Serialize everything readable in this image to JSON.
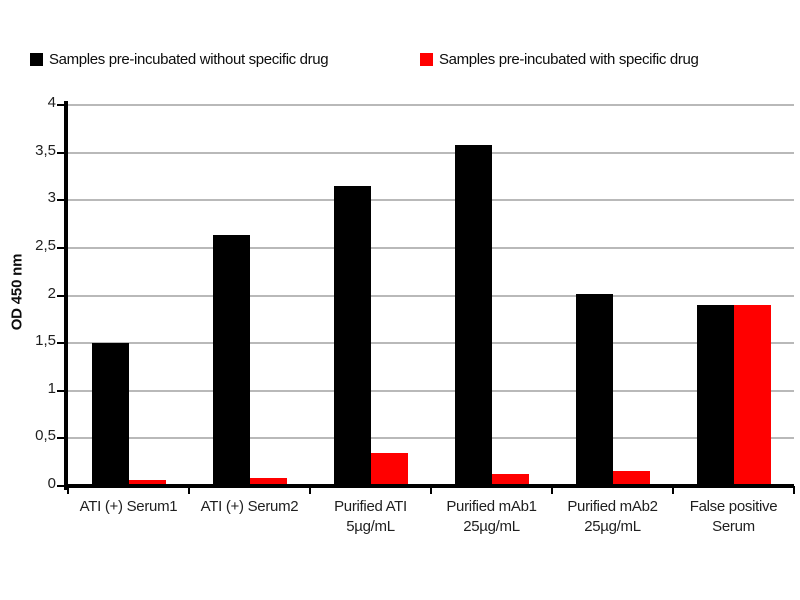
{
  "legend": {
    "items": [
      {
        "label": "Samples pre-incubated without specific drug",
        "color": "#000000"
      },
      {
        "label": "Samples pre-incubated with specific drug",
        "color": "#ff0000"
      }
    ]
  },
  "chart_data": {
    "type": "bar",
    "title": "",
    "xlabel": "",
    "ylabel": "OD 450 nm",
    "ylim": [
      0,
      4
    ],
    "ytick_interval": 0.5,
    "ytick_labels": [
      "0",
      "0,5",
      "1",
      "1,5",
      "2",
      "2,5",
      "3",
      "3,5",
      "4"
    ],
    "decimal_separator": ",",
    "grid": true,
    "legend_position": "top",
    "categories": [
      "ATI (+) Serum1",
      "ATI (+) Serum2",
      "Purified ATI\n5µg/mL",
      "Purified mAb1\n25µg/mL",
      "Purified mAb2\n25µg/mL",
      "False positive\nSerum"
    ],
    "series": [
      {
        "name": "Samples pre-incubated without specific drug",
        "color": "#000000",
        "values": [
          1.5,
          2.63,
          3.15,
          3.58,
          2.02,
          1.9
        ]
      },
      {
        "name": "Samples pre-incubated with specific drug",
        "color": "#ff0000",
        "values": [
          0.06,
          0.08,
          0.35,
          0.13,
          0.16,
          1.9
        ]
      }
    ],
    "colors": {
      "gridline": "#b9b9b9",
      "axis": "#000000",
      "text": "#1f1f1f"
    }
  }
}
